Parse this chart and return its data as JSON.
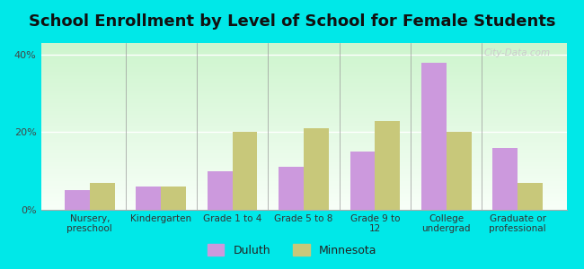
{
  "title": "School Enrollment by Level of School for Female Students",
  "categories": [
    "Nursery,\npreschool",
    "Kindergarten",
    "Grade 1 to 4",
    "Grade 5 to 8",
    "Grade 9 to\n12",
    "College\nundergrad",
    "Graduate or\nprofessional"
  ],
  "duluth": [
    5,
    6,
    10,
    11,
    15,
    38,
    16
  ],
  "minnesota": [
    7,
    6,
    20,
    21,
    23,
    20,
    7
  ],
  "duluth_color": "#cc99dd",
  "minnesota_color": "#c8c87a",
  "outer_bg": "#00e8e8",
  "ylabel_ticks": [
    "0%",
    "20%",
    "40%"
  ],
  "yticks": [
    0,
    20,
    40
  ],
  "ylim": [
    0,
    43
  ],
  "title_fontsize": 13,
  "legend_labels": [
    "Duluth",
    "Minnesota"
  ],
  "watermark": "City-Data.com",
  "bar_width": 0.35,
  "grad_top": "#cef5ce",
  "grad_bottom": "#f8fff8"
}
